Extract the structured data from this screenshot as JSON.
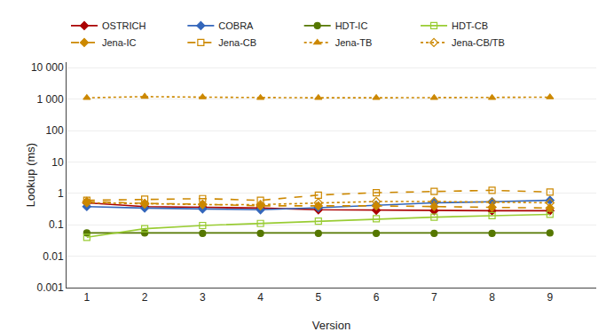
{
  "chart_data": {
    "type": "line",
    "xlabel": "Version",
    "ylabel": "Lookup (ms)",
    "x": [
      1,
      2,
      3,
      4,
      5,
      6,
      7,
      8,
      9
    ],
    "series": [
      {
        "name": "OSTRICH",
        "color": "#aa0000",
        "marker": "diamond",
        "line_style": "solid",
        "values": [
          0.5,
          0.38,
          0.36,
          0.34,
          0.3,
          0.29,
          0.28,
          0.28,
          0.28
        ]
      },
      {
        "name": "COBRA",
        "color": "#3366bb",
        "marker": "diamond",
        "line_style": "solid",
        "values": [
          0.38,
          0.34,
          0.32,
          0.3,
          0.35,
          0.42,
          0.5,
          0.54,
          0.6
        ]
      },
      {
        "name": "HDT-IC",
        "color": "#557700",
        "marker": "circle",
        "line_style": "solid",
        "values": [
          0.055,
          0.055,
          0.053,
          0.053,
          0.053,
          0.053,
          0.053,
          0.053,
          0.055
        ]
      },
      {
        "name": "HDT-CB",
        "color": "#99cc33",
        "marker": "square-open",
        "line_style": "solid",
        "values": [
          0.04,
          0.075,
          0.095,
          0.11,
          0.13,
          0.155,
          0.175,
          0.195,
          0.215
        ]
      },
      {
        "name": "Jena-IC",
        "color": "#cc8800",
        "marker": "diamond",
        "line_style": "dash",
        "values": [
          0.55,
          0.48,
          0.45,
          0.4,
          0.4,
          0.4,
          0.38,
          0.36,
          0.34
        ]
      },
      {
        "name": "Jena-CB",
        "color": "#cc8800",
        "marker": "square-open",
        "line_style": "dash",
        "values": [
          0.6,
          0.65,
          0.68,
          0.6,
          0.88,
          1.05,
          1.15,
          1.25,
          1.1
        ]
      },
      {
        "name": "Jena-TB",
        "color": "#cc8800",
        "marker": "triangle-up",
        "line_style": "dot",
        "values": [
          1100,
          1200,
          1150,
          1100,
          1100,
          1100,
          1100,
          1100,
          1150
        ]
      },
      {
        "name": "Jena-CB/TB",
        "color": "#cc8800",
        "marker": "diamond-open",
        "line_style": "dot",
        "values": [
          0.5,
          0.46,
          0.44,
          0.44,
          0.5,
          0.55,
          0.55,
          0.52,
          0.5
        ]
      }
    ],
    "xlim": [
      0.65,
      9.8
    ],
    "xticks": [
      1,
      2,
      3,
      4,
      5,
      6,
      7,
      8,
      9
    ],
    "ylim": [
      0.001,
      15000
    ],
    "yticks": [
      0.001,
      0.01,
      0.1,
      1,
      10,
      100,
      {
        "value": 1000,
        "label": "1 000"
      },
      {
        "value": 10000,
        "label": "10 000"
      }
    ],
    "log": "y",
    "grid": "y",
    "legend": "top"
  }
}
